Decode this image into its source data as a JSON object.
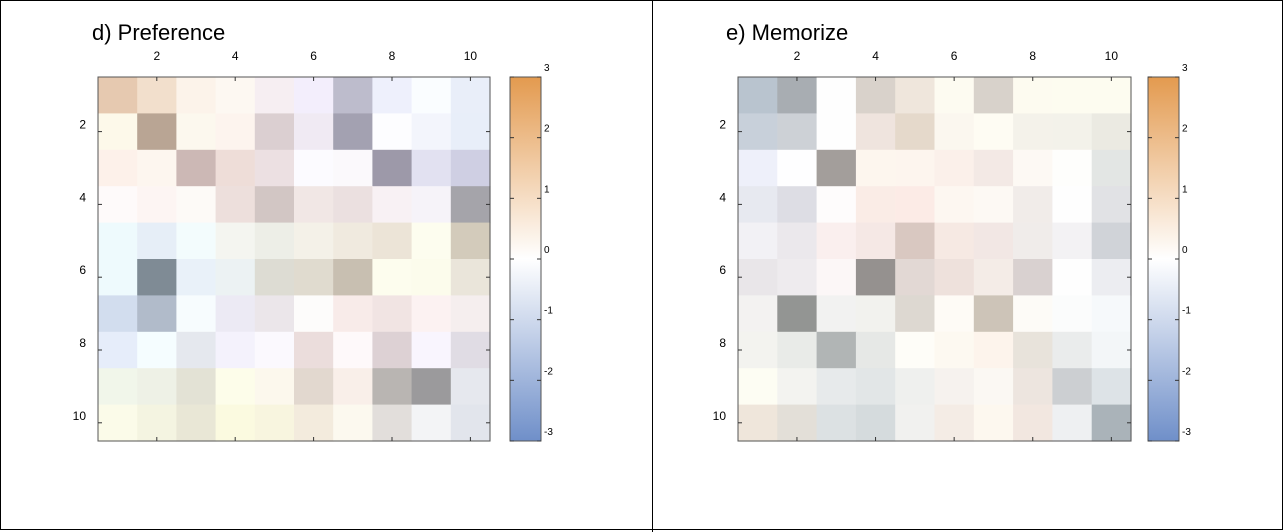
{
  "chart_data": [
    {
      "type": "heatmap",
      "title": "d) Preference",
      "x_ticks": [
        "2",
        "4",
        "6",
        "8",
        "10"
      ],
      "y_ticks": [
        "2",
        "4",
        "6",
        "8",
        "10"
      ],
      "colorbar": {
        "min": -3,
        "max": 3,
        "ticks": [
          "3",
          "2",
          "1",
          "0",
          "-1",
          "-2",
          "-3"
        ],
        "low_color": "#6f8fc9",
        "mid_color": "#ffffff",
        "high_color": "#e39a4f"
      },
      "cells": [
        [
          "#e6c9b0",
          "#f2dfcc",
          "#fcf3ea",
          "#fdf8f2",
          "#f6eef2",
          "#f3eefc",
          "#bdbccc",
          "#eef0fc",
          "#fafdff",
          "#e9eef9"
        ],
        [
          "#fdf9ea",
          "#b9a594",
          "#fcf8ee",
          "#fdf4ee",
          "#dbcfd1",
          "#f0eaf3",
          "#a3a1b1",
          "#fdfdff",
          "#f3f5fc",
          "#e8eef9"
        ],
        [
          "#fdf1ea",
          "#fdf6ef",
          "#ccb8b5",
          "#eeddd8",
          "#ece0e2",
          "#fcfbff",
          "#fbf9fc",
          "#9d99a9",
          "#e2e1f1",
          "#cfcfe3"
        ],
        [
          "#fefafa",
          "#fdf5f3",
          "#fdfaf7",
          "#eddfdc",
          "#d2c6c4",
          "#f1e7e5",
          "#ebe0e0",
          "#f8f1f4",
          "#f6f3f9",
          "#a5a4aa"
        ],
        [
          "#eefafd",
          "#e6eef7",
          "#f3fcfd",
          "#f4f5f0",
          "#edeee7",
          "#f4f1e8",
          "#f0eadf",
          "#ece4d7",
          "#fdfdef",
          "#d3cbbb"
        ],
        [
          "#eefafd",
          "#7f8b95",
          "#e9f1f9",
          "#ecf2f3",
          "#dddcd3",
          "#e0dbcf",
          "#c8bfb1",
          "#fdfdee",
          "#fcfcec",
          "#eae5da"
        ],
        [
          "#d2ddee",
          "#b1bbca",
          "#f7fcfe",
          "#eceaf4",
          "#ebe6ea",
          "#fdfcfb",
          "#f8ebe9",
          "#f1e4e3",
          "#fcf2f2",
          "#f5eeee"
        ],
        [
          "#e6edfa",
          "#f5fdff",
          "#e5e8ee",
          "#f4f2fc",
          "#fbf9fe",
          "#ebdddc",
          "#fef9fa",
          "#ddd1d4",
          "#f9f5fe",
          "#e0dce4"
        ],
        [
          "#f1f6ea",
          "#eef1e6",
          "#e3e2d5",
          "#fdfdea",
          "#fcf8ed",
          "#e2d8cf",
          "#f9efe9",
          "#b9b5b2",
          "#9b9a9c",
          "#e6e8ee"
        ],
        [
          "#fbfbe9",
          "#f4f4e1",
          "#e9e7d6",
          "#fbfae0",
          "#f8f5df",
          "#f3ebdd",
          "#fcf9ef",
          "#e2dedb",
          "#f3f4f6",
          "#e2e5ec"
        ]
      ]
    },
    {
      "type": "heatmap",
      "title": "e) Memorize",
      "x_ticks": [
        "2",
        "4",
        "6",
        "8",
        "10"
      ],
      "y_ticks": [
        "2",
        "4",
        "6",
        "8",
        "10"
      ],
      "colorbar": {
        "min": -3,
        "max": 3,
        "ticks": [
          "3",
          "2",
          "1",
          "0",
          "-1",
          "-2",
          "-3"
        ],
        "low_color": "#6f8fc9",
        "mid_color": "#ffffff",
        "high_color": "#e39a4f"
      },
      "cells": [
        [
          "#b9c4cf",
          "#a8adb2",
          "#fefefe",
          "#d9d2cb",
          "#efe6dc",
          "#fdfbf1",
          "#d8d2cb",
          "#fdfbf0",
          "#fdfcf0",
          "#fdfcf0"
        ],
        [
          "#c8d0da",
          "#cdd1d6",
          "#fefefe",
          "#efe4de",
          "#e5d9cb",
          "#fbf7ef",
          "#fefcf3",
          "#f4f2ea",
          "#f3f2ea",
          "#ebeae2"
        ],
        [
          "#eef0fa",
          "#fefeff",
          "#a39e9b",
          "#fdf6ee",
          "#fdf5ee",
          "#fbf0ea",
          "#f3e9e5",
          "#fdf9f4",
          "#fefefc",
          "#e3e6e4"
        ],
        [
          "#e7e9f0",
          "#dddde4",
          "#fefcfc",
          "#faece6",
          "#fcebe6",
          "#fdf7f1",
          "#fdf9f4",
          "#f1ece9",
          "#fefefe",
          "#e1e2e5"
        ],
        [
          "#f2f1f5",
          "#ebe8ec",
          "#faefee",
          "#f5e8e5",
          "#d9c8c1",
          "#f6e9e3",
          "#f2e7e4",
          "#f0ecea",
          "#f3f2f4",
          "#d0d3d8"
        ],
        [
          "#e9e6e9",
          "#eeebee",
          "#fcf7f7",
          "#95918f",
          "#e2d8d4",
          "#eee1dc",
          "#f4ece7",
          "#d9d1d0",
          "#fefefe",
          "#ecedf1"
        ],
        [
          "#f3f2f1",
          "#939593",
          "#f2f2f1",
          "#f2f2ee",
          "#ddd8d1",
          "#fefbf6",
          "#cdc4b8",
          "#fdfbf7",
          "#fbfcfc",
          "#f6f9fb"
        ],
        [
          "#f3f3ef",
          "#e9ebe8",
          "#b1b5b5",
          "#e6e8e6",
          "#fefdf8",
          "#fdf9f1",
          "#fdf4ec",
          "#e8e3db",
          "#eaecec",
          "#f3f6f8"
        ],
        [
          "#fdfdf3",
          "#f3f3f0",
          "#e7eaeb",
          "#e2e6e7",
          "#eff0ee",
          "#f6f2ee",
          "#fbf8f3",
          "#ede5df",
          "#cccfd2",
          "#dde3e7"
        ],
        [
          "#efe6db",
          "#e3dfd8",
          "#dce1e3",
          "#d5dbdd",
          "#f1f1ef",
          "#f4ece5",
          "#fdf8ef",
          "#f2e7e0",
          "#eef0f2",
          "#aab3b9"
        ]
      ]
    }
  ]
}
